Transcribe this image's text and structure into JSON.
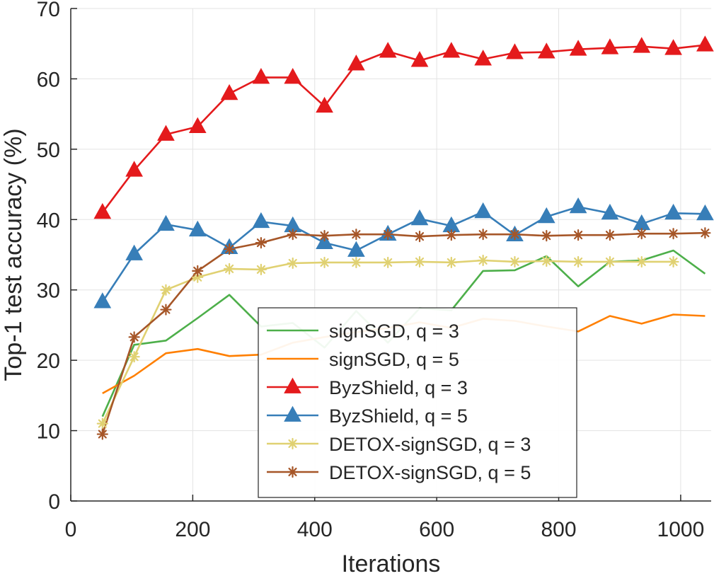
{
  "chart_data": {
    "type": "line",
    "xlabel": "Iterations",
    "ylabel": "Top-1 test accuracy (%)",
    "xlim": [
      0,
      1050
    ],
    "ylim": [
      0,
      70
    ],
    "xticks": [
      0,
      200,
      400,
      600,
      800,
      1000
    ],
    "yticks": [
      0,
      10,
      20,
      30,
      40,
      50,
      60,
      70
    ],
    "grid": true,
    "legend_position": "center",
    "series": [
      {
        "name": "signSGD, q = 3",
        "color": "#4daf4a",
        "marker": "none",
        "x": [
          52,
          104,
          156,
          208,
          260,
          312,
          364,
          416,
          468,
          520,
          572,
          624,
          676,
          728,
          780,
          832,
          884,
          936,
          988,
          1040
        ],
        "y": [
          12,
          22.2,
          22.8,
          26,
          29.3,
          24.8,
          25.3,
          21.8,
          27,
          22.5,
          27.4,
          27.1,
          32.7,
          32.8,
          34.8,
          30.5,
          34,
          34.2,
          35.6,
          32.3
        ]
      },
      {
        "name": "signSGD, q = 5",
        "color": "#ff7f00",
        "marker": "none",
        "x": [
          52,
          104,
          156,
          208,
          260,
          312,
          364,
          416,
          468,
          520,
          572,
          624,
          676,
          728,
          780,
          832,
          884,
          936,
          988,
          1040
        ],
        "y": [
          15.3,
          17.8,
          21,
          21.6,
          20.6,
          20.8,
          22.5,
          23.3,
          24,
          24.6,
          25.4,
          24.6,
          25.9,
          25.6,
          24.8,
          24.1,
          26.3,
          25.2,
          26.5,
          26.3
        ]
      },
      {
        "name": "ByzShield, q = 3",
        "color": "#e41a1c",
        "marker": "triangle",
        "x": [
          52,
          104,
          156,
          208,
          260,
          312,
          364,
          416,
          468,
          520,
          572,
          624,
          676,
          728,
          780,
          832,
          884,
          936,
          988,
          1040
        ],
        "y": [
          41,
          47,
          52.1,
          53.2,
          57.9,
          60.2,
          60.2,
          56.1,
          62.1,
          63.9,
          62.6,
          63.9,
          62.8,
          63.7,
          63.8,
          64.2,
          64.4,
          64.6,
          64.3,
          64.8
        ]
      },
      {
        "name": "ByzShield, q = 5",
        "color": "#377eb8",
        "marker": "triangle",
        "x": [
          52,
          104,
          156,
          208,
          260,
          312,
          364,
          416,
          468,
          520,
          572,
          624,
          676,
          728,
          780,
          832,
          884,
          936,
          988,
          1040
        ],
        "y": [
          28.3,
          35.1,
          39.3,
          38.5,
          36,
          39.7,
          39.1,
          36.7,
          35.6,
          37.9,
          40.1,
          39.1,
          41.1,
          37.8,
          40.4,
          41.8,
          40.9,
          39.4,
          40.9,
          40.8
        ]
      },
      {
        "name": "DETOX-signSGD, q = 3",
        "color": "#e0d172",
        "marker": "asterisk",
        "x": [
          52,
          104,
          156,
          208,
          260,
          312,
          364,
          416,
          468,
          520,
          572,
          624,
          676,
          728,
          780,
          832,
          884,
          936,
          988
        ],
        "y": [
          11,
          20.5,
          30,
          31.8,
          33,
          32.9,
          33.8,
          33.9,
          33.9,
          33.9,
          34,
          33.9,
          34.2,
          34,
          34.1,
          34,
          34,
          34,
          34
        ]
      },
      {
        "name": "DETOX-signSGD, q = 5",
        "color": "#a65628",
        "marker": "asterisk",
        "x": [
          52,
          104,
          156,
          208,
          260,
          312,
          364,
          416,
          468,
          520,
          572,
          624,
          676,
          728,
          780,
          832,
          884,
          936,
          988,
          1040
        ],
        "y": [
          9.5,
          23.3,
          27.2,
          32.7,
          35.8,
          36.7,
          37.9,
          37.7,
          37.9,
          37.9,
          37.6,
          37.8,
          37.9,
          37.9,
          37.7,
          37.8,
          37.8,
          38,
          38,
          38.1
        ]
      }
    ]
  }
}
